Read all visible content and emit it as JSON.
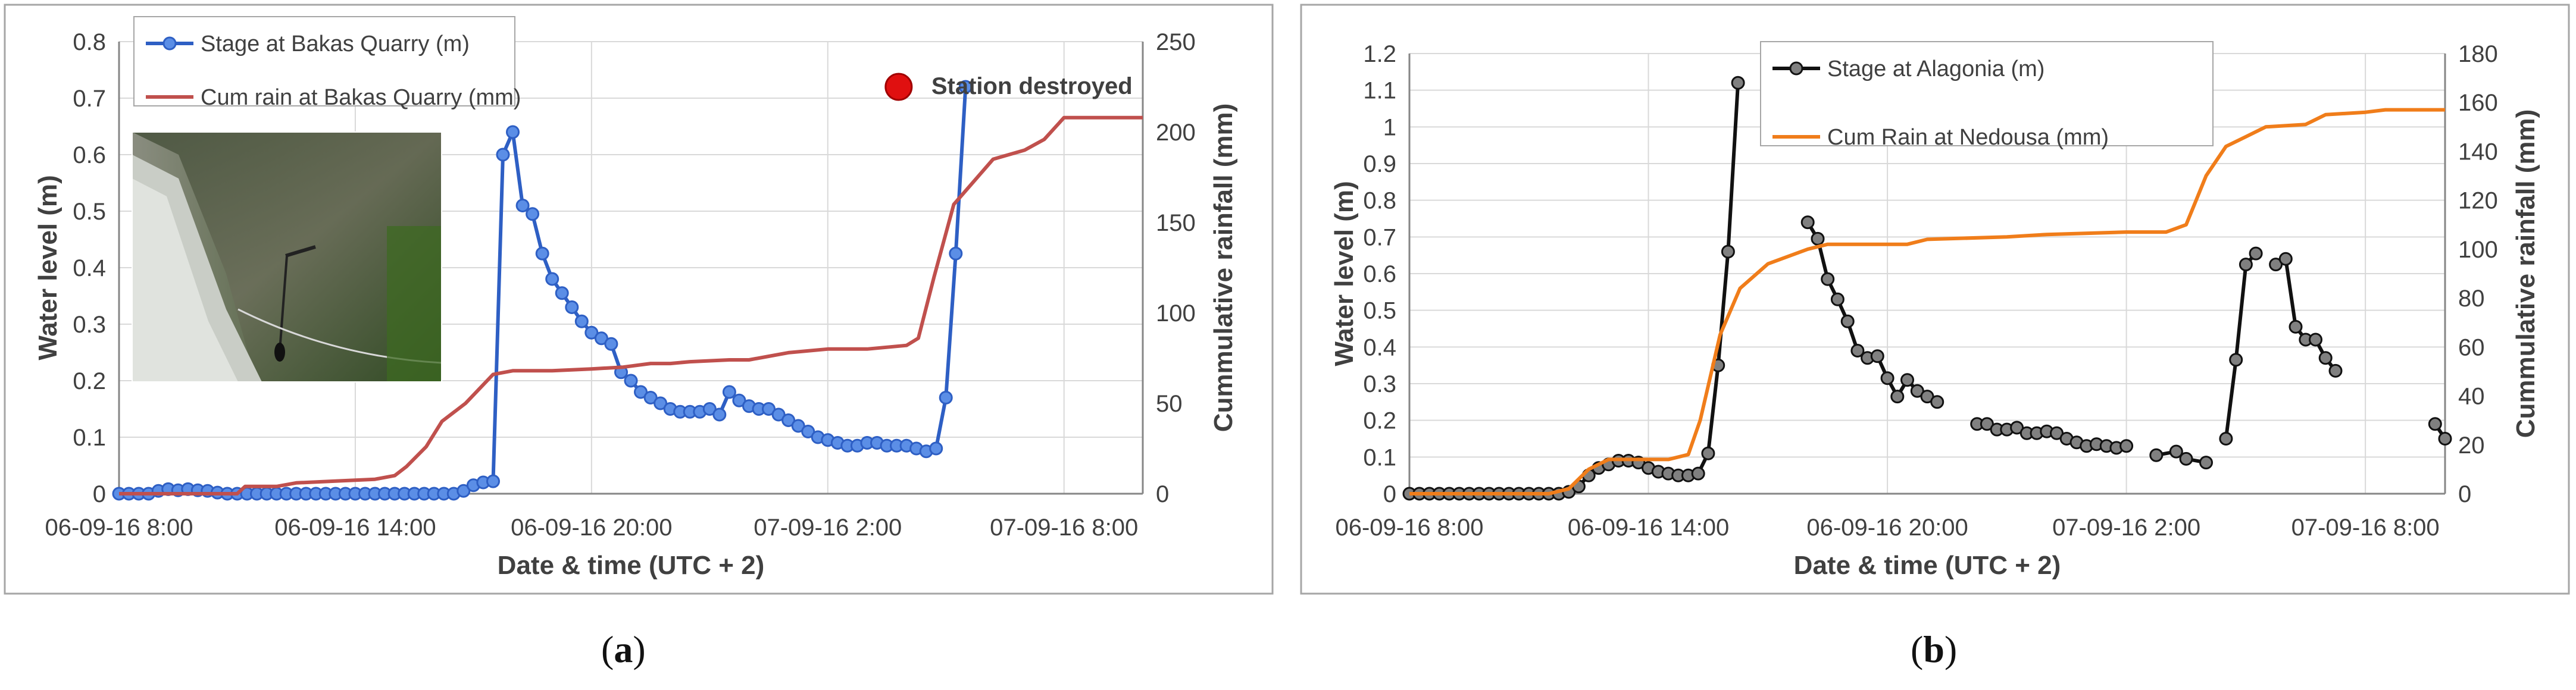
{
  "charts": [
    {
      "id": "a",
      "caption_letter": "a",
      "xlabel": "Date & time (UTC + 2)",
      "ylabel": "Water level (m)",
      "y2label": "Cummulative rainfall (mm)",
      "xlim": [
        0,
        26
      ],
      "ylim": [
        0,
        0.8
      ],
      "y2lim": [
        0,
        250
      ],
      "yticks": [
        "0",
        "0.1",
        "0.2",
        "0.3",
        "0.4",
        "0.5",
        "0.6",
        "0.7",
        "0.8"
      ],
      "y2ticks": [
        "0",
        "50",
        "100",
        "150",
        "200",
        "250"
      ],
      "xticks": [
        {
          "h": 0,
          "label": "06-09-16 8:00"
        },
        {
          "h": 6,
          "label": "06-09-16 14:00"
        },
        {
          "h": 12,
          "label": "06-09-16 20:00"
        },
        {
          "h": 18,
          "label": "07-09-16 2:00"
        },
        {
          "h": 24,
          "label": "07-09-16 8:00"
        }
      ],
      "annotation": {
        "text": "Station destroyed",
        "h": 19.8,
        "y": 0.72,
        "color": "#e01010"
      },
      "series": [
        {
          "name": "Stage at Bakas Quarry  (m)",
          "color": "#2e5fc4",
          "marker_fill": "#5b8ee6",
          "axis": "left",
          "points": [
            [
              0,
              0
            ],
            [
              0.25,
              0
            ],
            [
              0.5,
              0
            ],
            [
              0.75,
              0
            ],
            [
              1,
              0.005
            ],
            [
              1.25,
              0.008
            ],
            [
              1.5,
              0.006
            ],
            [
              1.75,
              0.008
            ],
            [
              2,
              0.006
            ],
            [
              2.25,
              0.005
            ],
            [
              2.5,
              0.002
            ],
            [
              2.75,
              0
            ],
            [
              3,
              0
            ],
            [
              3.25,
              0
            ],
            [
              3.5,
              0
            ],
            [
              3.75,
              0
            ],
            [
              4,
              0
            ],
            [
              4.25,
              0
            ],
            [
              4.5,
              0
            ],
            [
              4.75,
              0
            ],
            [
              5,
              0
            ],
            [
              5.25,
              0
            ],
            [
              5.5,
              0
            ],
            [
              5.75,
              0
            ],
            [
              6,
              0
            ],
            [
              6.25,
              0
            ],
            [
              6.5,
              0
            ],
            [
              6.75,
              0
            ],
            [
              7,
              0
            ],
            [
              7.25,
              0
            ],
            [
              7.5,
              0
            ],
            [
              7.75,
              0
            ],
            [
              8,
              0
            ],
            [
              8.25,
              0
            ],
            [
              8.5,
              0
            ],
            [
              8.75,
              0.005
            ],
            [
              9,
              0.015
            ],
            [
              9.25,
              0.02
            ],
            [
              9.5,
              0.022
            ],
            [
              9.75,
              0.6
            ],
            [
              10,
              0.64
            ],
            [
              10.25,
              0.51
            ],
            [
              10.5,
              0.495
            ],
            [
              10.75,
              0.425
            ],
            [
              11,
              0.38
            ],
            [
              11.25,
              0.355
            ],
            [
              11.5,
              0.33
            ],
            [
              11.75,
              0.305
            ],
            [
              12,
              0.285
            ],
            [
              12.25,
              0.275
            ],
            [
              12.5,
              0.265
            ],
            [
              12.75,
              0.215
            ],
            [
              13,
              0.2
            ],
            [
              13.25,
              0.18
            ],
            [
              13.5,
              0.17
            ],
            [
              13.75,
              0.16
            ],
            [
              14,
              0.15
            ],
            [
              14.25,
              0.145
            ],
            [
              14.5,
              0.145
            ],
            [
              14.75,
              0.145
            ],
            [
              15,
              0.15
            ],
            [
              15.25,
              0.14
            ],
            [
              15.5,
              0.18
            ],
            [
              15.75,
              0.165
            ],
            [
              16,
              0.155
            ],
            [
              16.25,
              0.15
            ],
            [
              16.5,
              0.15
            ],
            [
              16.75,
              0.14
            ],
            [
              17,
              0.13
            ],
            [
              17.25,
              0.12
            ],
            [
              17.5,
              0.11
            ],
            [
              17.75,
              0.1
            ],
            [
              18,
              0.095
            ],
            [
              18.25,
              0.09
            ],
            [
              18.5,
              0.085
            ],
            [
              18.75,
              0.085
            ],
            [
              19,
              0.09
            ],
            [
              19.25,
              0.09
            ],
            [
              19.5,
              0.085
            ],
            [
              19.75,
              0.085
            ],
            [
              20,
              0.085
            ],
            [
              20.25,
              0.08
            ],
            [
              20.5,
              0.075
            ],
            [
              20.75,
              0.08
            ],
            [
              21,
              0.17
            ],
            [
              21.25,
              0.425
            ],
            [
              21.5,
              0.72
            ]
          ]
        },
        {
          "name": "Cum rain at Bakas Quarry (mm)",
          "color": "#c0504d",
          "axis": "right",
          "points": [
            [
              0,
              0
            ],
            [
              3,
              0
            ],
            [
              3.2,
              4
            ],
            [
              4,
              4
            ],
            [
              4.5,
              6
            ],
            [
              5.5,
              7
            ],
            [
              6.5,
              8
            ],
            [
              7,
              10
            ],
            [
              7.3,
              15
            ],
            [
              7.8,
              26
            ],
            [
              8.2,
              40
            ],
            [
              8.8,
              50
            ],
            [
              9.5,
              66
            ],
            [
              10,
              68
            ],
            [
              11,
              68
            ],
            [
              12,
              69
            ],
            [
              12.8,
              70
            ],
            [
              13.5,
              72
            ],
            [
              14,
              72
            ],
            [
              14.5,
              73
            ],
            [
              15.5,
              74
            ],
            [
              16,
              74
            ],
            [
              16.5,
              76
            ],
            [
              17,
              78
            ],
            [
              18,
              80
            ],
            [
              19,
              80
            ],
            [
              20,
              82
            ],
            [
              20.3,
              86
            ],
            [
              20.7,
              120
            ],
            [
              21.2,
              160
            ],
            [
              21.8,
              175
            ],
            [
              22.2,
              185
            ],
            [
              23,
              190
            ],
            [
              23.5,
              196
            ],
            [
              24,
              208
            ],
            [
              26,
              208
            ]
          ]
        }
      ]
    },
    {
      "id": "b",
      "caption_letter": "b",
      "xlabel": "Date & time (UTC + 2)",
      "ylabel": "Water level (m)",
      "y2label": "Cummulative rainfall (mm)",
      "xlim": [
        0,
        26
      ],
      "ylim": [
        0,
        1.2
      ],
      "y2lim": [
        0,
        180
      ],
      "yticks": [
        "0",
        "0.1",
        "0.2",
        "0.3",
        "0.4",
        "0.5",
        "0.6",
        "0.7",
        "0.8",
        "0.9",
        "1",
        "1.1",
        "1.2"
      ],
      "y2ticks": [
        "0",
        "20",
        "40",
        "60",
        "80",
        "100",
        "120",
        "140",
        "160",
        "180"
      ],
      "xticks": [
        {
          "h": 0,
          "label": "06-09-16 8:00"
        },
        {
          "h": 6,
          "label": "06-09-16 14:00"
        },
        {
          "h": 12,
          "label": "06-09-16 20:00"
        },
        {
          "h": 18,
          "label": "07-09-16 2:00"
        },
        {
          "h": 24,
          "label": "07-09-16 8:00"
        }
      ],
      "series": [
        {
          "name": "Stage at Alagonia (m)",
          "color": "#111111",
          "marker_fill": "#808080",
          "axis": "left",
          "segments": [
            [
              [
                0,
                0
              ],
              [
                0.25,
                0
              ],
              [
                0.5,
                0
              ],
              [
                0.75,
                0
              ],
              [
                1,
                0
              ],
              [
                1.25,
                0
              ],
              [
                1.5,
                0
              ],
              [
                1.75,
                0
              ],
              [
                2,
                0
              ],
              [
                2.25,
                0
              ],
              [
                2.5,
                0
              ],
              [
                2.75,
                0
              ],
              [
                3,
                0
              ],
              [
                3.25,
                0
              ],
              [
                3.5,
                0
              ],
              [
                3.75,
                0
              ],
              [
                4,
                0.005
              ],
              [
                4.25,
                0.02
              ],
              [
                4.5,
                0.05
              ],
              [
                4.75,
                0.07
              ],
              [
                5,
                0.08
              ],
              [
                5.25,
                0.09
              ],
              [
                5.5,
                0.09
              ],
              [
                5.75,
                0.085
              ],
              [
                6,
                0.07
              ],
              [
                6.25,
                0.06
              ],
              [
                6.5,
                0.055
              ],
              [
                6.75,
                0.05
              ],
              [
                7,
                0.05
              ],
              [
                7.25,
                0.055
              ],
              [
                7.5,
                0.11
              ],
              [
                7.75,
                0.35
              ],
              [
                8,
                0.66
              ],
              [
                8.25,
                1.12
              ]
            ],
            [
              [
                10,
                0.74
              ],
              [
                10.25,
                0.695
              ],
              [
                10.5,
                0.585
              ],
              [
                10.75,
                0.53
              ],
              [
                11,
                0.47
              ],
              [
                11.25,
                0.39
              ],
              [
                11.5,
                0.37
              ],
              [
                11.75,
                0.375
              ],
              [
                12,
                0.315
              ],
              [
                12.25,
                0.265
              ],
              [
                12.5,
                0.31
              ],
              [
                12.75,
                0.28
              ],
              [
                13,
                0.265
              ],
              [
                13.25,
                0.25
              ]
            ],
            [
              [
                14.25,
                0.19
              ],
              [
                14.5,
                0.19
              ],
              [
                14.75,
                0.175
              ],
              [
                15,
                0.175
              ],
              [
                15.25,
                0.18
              ],
              [
                15.5,
                0.165
              ],
              [
                15.75,
                0.165
              ],
              [
                16,
                0.17
              ],
              [
                16.25,
                0.165
              ],
              [
                16.5,
                0.15
              ],
              [
                16.75,
                0.14
              ],
              [
                17,
                0.13
              ],
              [
                17.25,
                0.135
              ],
              [
                17.5,
                0.13
              ],
              [
                17.75,
                0.125
              ],
              [
                18,
                0.13
              ]
            ],
            [
              [
                18.75,
                0.105
              ],
              [
                19.25,
                0.115
              ],
              [
                19.5,
                0.095
              ],
              [
                20,
                0.085
              ]
            ],
            [
              [
                20.5,
                0.15
              ],
              [
                20.75,
                0.365
              ],
              [
                21,
                0.625
              ],
              [
                21.25,
                0.655
              ]
            ],
            [
              [
                21.75,
                0.625
              ],
              [
                22,
                0.64
              ],
              [
                22.25,
                0.455
              ],
              [
                22.5,
                0.42
              ],
              [
                22.75,
                0.42
              ],
              [
                23,
                0.37
              ],
              [
                23.25,
                0.335
              ]
            ],
            [
              [
                25.75,
                0.19
              ],
              [
                26,
                0.15
              ]
            ]
          ]
        },
        {
          "name": "Cum Rain at Nedousa (mm)",
          "color": "#f07d1a",
          "axis": "right",
          "points": [
            [
              0,
              0
            ],
            [
              3.5,
              0
            ],
            [
              4,
              2
            ],
            [
              4.5,
              10
            ],
            [
              5,
              14
            ],
            [
              6.5,
              14
            ],
            [
              7,
              16
            ],
            [
              7.3,
              30
            ],
            [
              7.8,
              65
            ],
            [
              8.3,
              84
            ],
            [
              9,
              94
            ],
            [
              10,
              100
            ],
            [
              10.5,
              102
            ],
            [
              12.5,
              102
            ],
            [
              13,
              104
            ],
            [
              15,
              105
            ],
            [
              16,
              106
            ],
            [
              18,
              107
            ],
            [
              19,
              107
            ],
            [
              19.5,
              110
            ],
            [
              20,
              130
            ],
            [
              20.5,
              142
            ],
            [
              21,
              146
            ],
            [
              21.5,
              150
            ],
            [
              22.5,
              151
            ],
            [
              23,
              155
            ],
            [
              24,
              156
            ],
            [
              24.5,
              157
            ],
            [
              26,
              157
            ]
          ]
        }
      ]
    }
  ]
}
